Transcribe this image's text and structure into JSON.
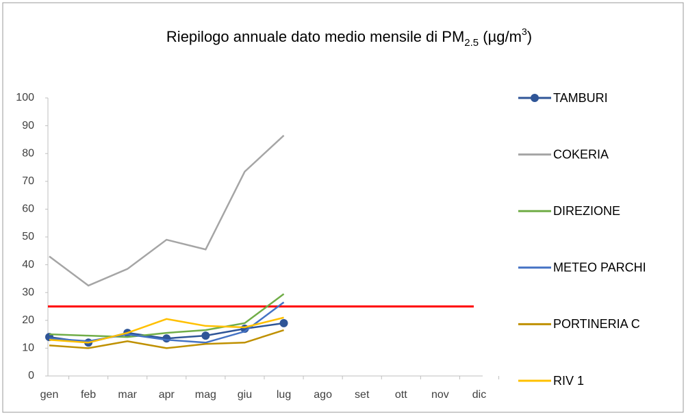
{
  "chart_data": {
    "type": "line",
    "title": [
      "Riepilogo annuale dato medio mensile di PM",
      "2.5",
      " (µg/m",
      "3",
      ")"
    ],
    "categories": [
      "gen",
      "feb",
      "mar",
      "apr",
      "mag",
      "giu",
      "lug",
      "ago",
      "set",
      "ott",
      "nov",
      "dic"
    ],
    "series": [
      {
        "name": "TAMBURI",
        "color": "#2f5597",
        "markers": true,
        "values": [
          14,
          12,
          15.5,
          13.5,
          14.5,
          17,
          19,
          null,
          null,
          null,
          null,
          null
        ]
      },
      {
        "name": "COKERIA",
        "color": "#a5a5a5",
        "values": [
          43,
          32.5,
          38.5,
          49,
          45.5,
          73.5,
          86.5,
          null,
          null,
          null,
          null,
          null
        ]
      },
      {
        "name": "DIREZIONE",
        "color": "#70ad47",
        "values": [
          15,
          14.5,
          14,
          15.5,
          16.5,
          19,
          29.5,
          null,
          null,
          null,
          null,
          null
        ]
      },
      {
        "name": "METEO PARCHI",
        "color": "#4472c4",
        "values": [
          13.5,
          12.5,
          15,
          13,
          12,
          16,
          26.5,
          null,
          null,
          null,
          null,
          null
        ]
      },
      {
        "name": "PORTINERIA C",
        "color": "#bf9000",
        "values": [
          11,
          10,
          12.5,
          10,
          11.5,
          12,
          16.5,
          null,
          null,
          null,
          null,
          null
        ]
      },
      {
        "name": "RIV 1",
        "color": "#ffc000",
        "values": [
          13,
          12,
          15.5,
          20.5,
          18,
          17.5,
          21,
          null,
          null,
          null,
          null,
          null
        ]
      }
    ],
    "reference_line": {
      "value": 25,
      "color": "#ff0000"
    },
    "ylim": [
      0,
      100
    ],
    "yticks": [
      0,
      10,
      20,
      30,
      40,
      50,
      60,
      70,
      80,
      90,
      100
    ],
    "legend": "right"
  }
}
